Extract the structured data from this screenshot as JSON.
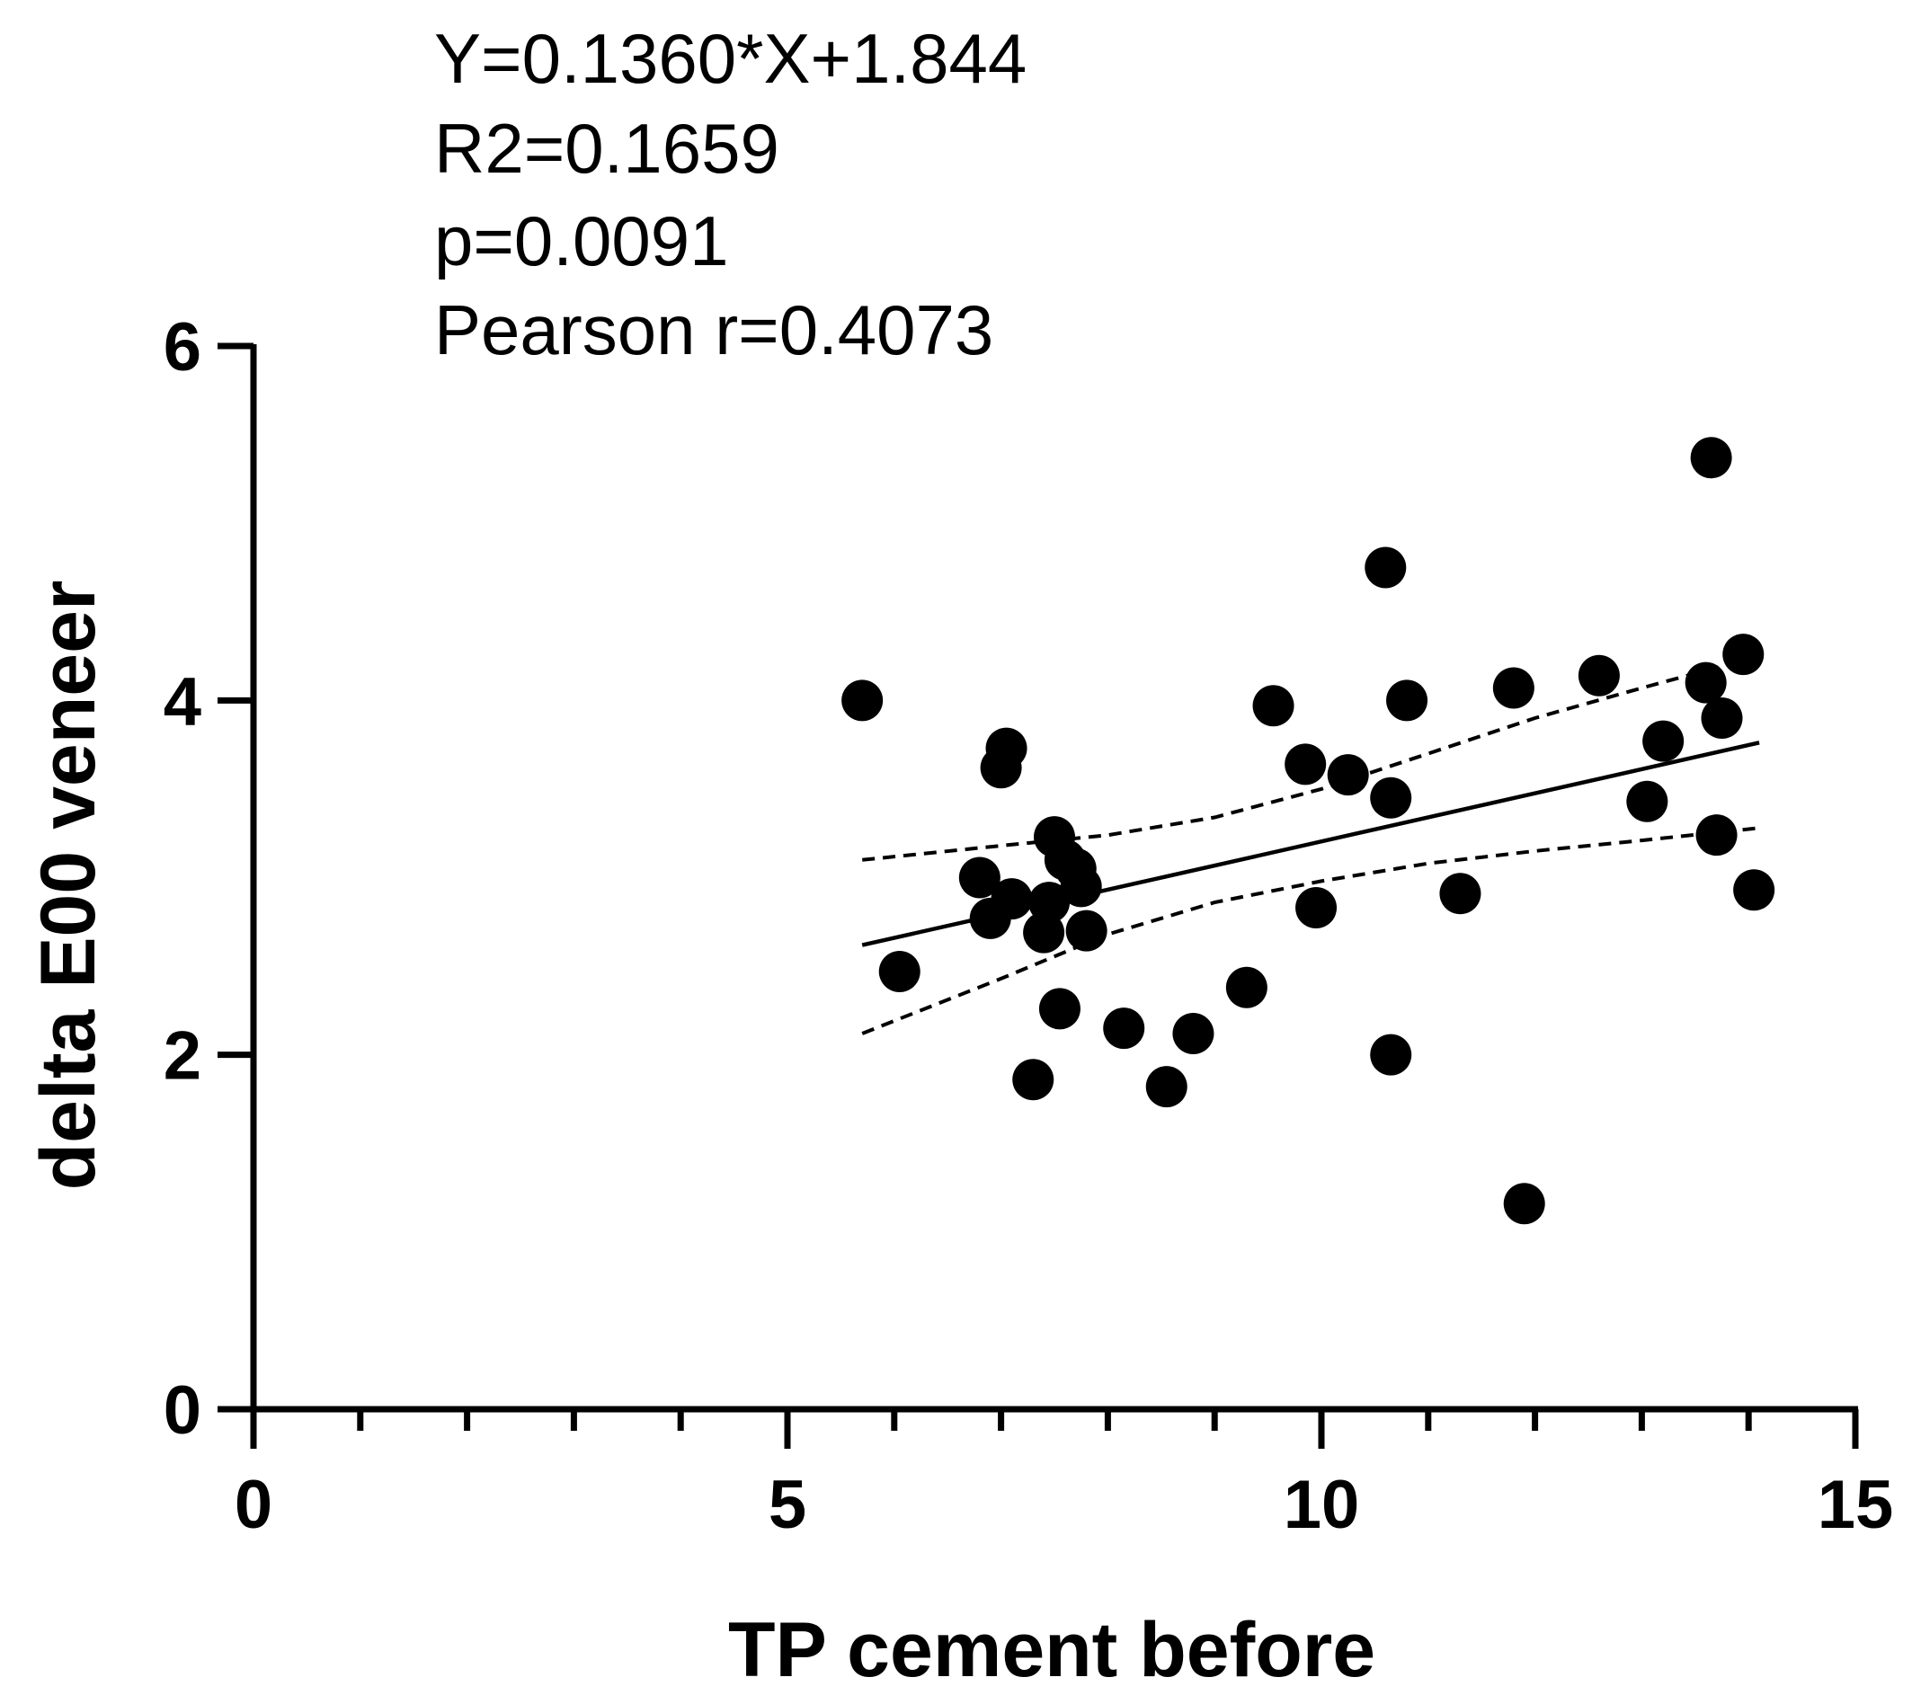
{
  "chart_data": {
    "type": "scatter",
    "title": "",
    "annotations": [
      "Y=0.1360*X+1.844",
      "R2=0.1659",
      "p=0.0091",
      "Pearson r=0.4073"
    ],
    "xlabel": "TP cement before",
    "ylabel": "delta E00 veneer",
    "xlim": [
      0,
      15
    ],
    "ylim": [
      0,
      6
    ],
    "x_ticks": [
      0,
      5,
      10,
      15
    ],
    "x_minor_step": 1,
    "y_ticks": [
      0,
      2,
      4,
      6
    ],
    "grid": false,
    "legend": "none",
    "marker_color": "#000000",
    "points": [
      {
        "x": 5.7,
        "y": 4.0
      },
      {
        "x": 6.05,
        "y": 2.47
      },
      {
        "x": 6.8,
        "y": 3.0
      },
      {
        "x": 6.9,
        "y": 2.77
      },
      {
        "x": 7.0,
        "y": 3.62
      },
      {
        "x": 7.05,
        "y": 3.73
      },
      {
        "x": 7.1,
        "y": 2.88
      },
      {
        "x": 7.3,
        "y": 1.86
      },
      {
        "x": 7.4,
        "y": 2.69
      },
      {
        "x": 7.45,
        "y": 2.86
      },
      {
        "x": 7.5,
        "y": 3.23
      },
      {
        "x": 7.55,
        "y": 2.26
      },
      {
        "x": 7.6,
        "y": 3.1
      },
      {
        "x": 7.7,
        "y": 3.05
      },
      {
        "x": 7.75,
        "y": 2.95
      },
      {
        "x": 7.8,
        "y": 2.7
      },
      {
        "x": 8.15,
        "y": 2.15
      },
      {
        "x": 8.55,
        "y": 1.82
      },
      {
        "x": 8.8,
        "y": 2.12
      },
      {
        "x": 9.3,
        "y": 2.38
      },
      {
        "x": 9.55,
        "y": 3.97
      },
      {
        "x": 9.85,
        "y": 3.64
      },
      {
        "x": 9.95,
        "y": 2.83
      },
      {
        "x": 10.25,
        "y": 3.58
      },
      {
        "x": 10.6,
        "y": 4.75
      },
      {
        "x": 10.65,
        "y": 3.45
      },
      {
        "x": 10.65,
        "y": 2.0
      },
      {
        "x": 10.8,
        "y": 4.0
      },
      {
        "x": 11.3,
        "y": 2.91
      },
      {
        "x": 11.8,
        "y": 4.07
      },
      {
        "x": 11.9,
        "y": 1.16
      },
      {
        "x": 12.6,
        "y": 4.14
      },
      {
        "x": 13.05,
        "y": 3.43
      },
      {
        "x": 13.2,
        "y": 3.77
      },
      {
        "x": 13.6,
        "y": 4.1
      },
      {
        "x": 13.65,
        "y": 5.37
      },
      {
        "x": 13.7,
        "y": 3.24
      },
      {
        "x": 13.75,
        "y": 3.9
      },
      {
        "x": 13.95,
        "y": 4.26
      },
      {
        "x": 14.05,
        "y": 2.93
      }
    ],
    "regression": {
      "slope": 0.136,
      "intercept": 1.844,
      "x_range": [
        5.7,
        14.1
      ]
    },
    "confidence_band": {
      "upper": [
        [
          5.7,
          3.1
        ],
        [
          7.0,
          3.18
        ],
        [
          8.0,
          3.24
        ],
        [
          9.0,
          3.34
        ],
        [
          10.0,
          3.5
        ],
        [
          11.0,
          3.7
        ],
        [
          12.0,
          3.9
        ],
        [
          13.0,
          4.07
        ],
        [
          14.1,
          4.25
        ]
      ],
      "lower": [
        [
          5.7,
          2.12
        ],
        [
          7.0,
          2.43
        ],
        [
          8.0,
          2.68
        ],
        [
          9.0,
          2.86
        ],
        [
          10.0,
          2.98
        ],
        [
          11.0,
          3.08
        ],
        [
          12.0,
          3.15
        ],
        [
          13.0,
          3.21
        ],
        [
          14.1,
          3.28
        ]
      ]
    }
  }
}
